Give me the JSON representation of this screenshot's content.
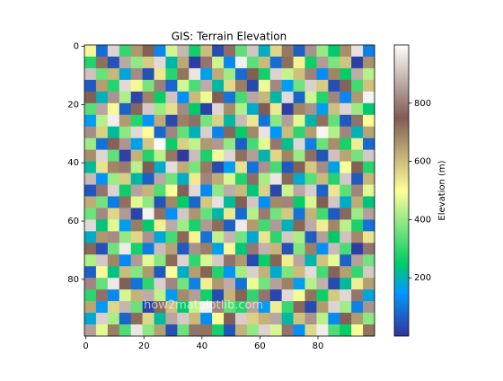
{
  "chart_data": {
    "type": "heatmap",
    "title": "GIS: Terrain Elevation",
    "colormap": "terrain",
    "colorbar_label": "Elevation (m)",
    "annotation": "how2matplotlib.com",
    "xlim": [
      -0.5,
      99.5
    ],
    "ylim": [
      99.5,
      -0.5
    ],
    "xticks": [
      0,
      20,
      40,
      60,
      80
    ],
    "yticks": [
      0,
      20,
      40,
      60,
      80
    ],
    "clim": [
      0,
      1000
    ],
    "colorbar_ticks": [
      200,
      400,
      600,
      800
    ],
    "z": [
      [
        512,
        87,
        934,
        301,
        658,
        742,
        123,
        455,
        889,
        267,
        601,
        38,
        776,
        342,
        910,
        189,
        563,
        705,
        64,
        831,
        398,
        247,
        672,
        954,
        115
      ],
      [
        283,
        719,
        46,
        867,
        392,
        578,
        941,
        206,
        634,
        15,
        788,
        453,
        129,
        976,
        341,
        602,
        85,
        724,
        519,
        263,
        847,
        371,
        590,
        19,
        668
      ],
      [
        905,
        352,
        611,
        178,
        823,
        47,
        536,
        288,
        712,
        959,
        164,
        627,
        403,
        82,
        745,
        268,
        931,
        441,
        596,
        807,
        132,
        685,
        254,
        873,
        427
      ],
      [
        61,
        648,
        287,
        942,
        513,
        369,
        804,
        73,
        456,
        325,
        871,
        208,
        559,
        697,
        31,
        482,
        817,
        159,
        364,
        928,
        578,
        43,
        761,
        316,
        594
      ],
      [
        744,
        195,
        836,
        420,
        26,
        691,
        259,
        907,
        138,
        604,
        483,
        752,
        97,
        318,
        865,
        611,
        207,
        944,
        73,
        452,
        286,
        813,
        125,
        657,
        982
      ],
      [
        337,
        862,
        509,
        71,
        765,
        918,
        402,
        551,
        823,
        246,
        19,
        936,
        675,
        423,
        186,
        749,
        534,
        18,
        689,
        831,
        162,
        597,
        936,
        402,
        241
      ],
      [
        159,
        428,
        973,
        654,
        287,
        143,
        628,
        35,
        694,
        781,
        362,
        571,
        208,
        894,
        537,
        92,
        385,
        852,
        471,
        205,
        719,
        348,
        57,
        783,
        506
      ],
      [
        826,
        571,
        214,
        389,
        942,
        506,
        76,
        813,
        347,
        198,
        925,
        119,
        764,
        255,
        683,
        957,
        146,
        603,
        291,
        647,
        984,
        426,
        812,
        197,
        639
      ],
      [
        402,
        93,
        758,
        839,
        163,
        587,
        994,
        261,
        572,
        438,
        657,
        843,
        391,
        62,
        319,
        474,
        792,
        226,
        938,
        113,
        352,
        671,
        273,
        531,
        78
      ],
      [
        671,
        937,
        345,
        22,
        616,
        281,
        432,
        708,
        12,
        899,
        274,
        485,
        937,
        719,
        852,
        205,
        563,
        689,
        401,
        778,
        49,
        904,
        638,
        364,
        916
      ],
      [
        215,
        543,
        687,
        798,
        431,
        752,
        187,
        946,
        625,
        367,
        704,
        36,
        158,
        543,
        96,
        831,
        317,
        54,
        756,
        584,
        823,
        169,
        493,
        742,
        287
      ],
      [
        893,
        142,
        403,
        576,
        209,
        64,
        865,
        359,
        187,
        532,
        813,
        627,
        461,
        281,
        775,
        413,
        958,
        731,
        182,
        337,
        607,
        285,
        916,
        56,
        613
      ],
      [
        52,
        786,
        931,
        263,
        857,
        614,
        329,
        493,
        758,
        941,
        127,
        392,
        873,
        605,
        238,
        569,
        28,
        448,
        864,
        925,
        71,
        538,
        342,
        811,
        469
      ],
      [
        627,
        364,
        108,
        719,
        472,
        393,
        48,
        682,
        254,
        76,
        586,
        952,
        217,
        743,
        914,
        136,
        679,
        812,
        257,
        463,
        746,
        911,
        186,
        628,
        235
      ],
      [
        358,
        817,
        562,
        846,
        25,
        981,
        716,
        137,
        913,
        662,
        349,
        208,
        534,
        81,
        427,
        798,
        362,
        583,
        95,
        618,
        314,
        57,
        769,
        403,
        853
      ],
      [
        941,
        236,
        473,
        157,
        698,
        247,
        524,
        871,
        406,
        273,
        846,
        723,
        65,
        968,
        651,
        314,
        846,
        197,
        734,
        871,
        528,
        682,
        433,
        276,
        94
      ],
      [
        186,
        659,
        824,
        392,
        563,
        835,
        173,
        317,
        731,
        518,
        92,
        437,
        886,
        362,
        177,
        542,
        293,
        915,
        418,
        62,
        853,
        249,
        907,
        681,
        539
      ],
      [
        734,
        42,
        359,
        968,
        274,
        109,
        896,
        643,
        58,
        832,
        695,
        164,
        512,
        237,
        793,
        881,
        614,
        46,
        376,
        694,
        137,
        896,
        324,
        15,
        786
      ],
      [
        423,
        915,
        687,
        126,
        845,
        471,
        382,
        728,
        934,
        296,
        461,
        918,
        783,
        657,
        34,
        258,
        737,
        528,
        861,
        205,
        592,
        477,
        69,
        854,
        362
      ],
      [
        66,
        508,
        231,
        603,
        379,
        658,
        55,
        496,
        187,
        647,
        738,
        283,
        146,
        412,
        927,
        619,
        183,
        374,
        602,
        947,
        318,
        762,
        645,
        297,
        918
      ],
      [
        815,
        347,
        964,
        745,
        93,
        294,
        927,
        812,
        363,
        114,
        526,
        657,
        873,
        94,
        481,
        363,
        854,
        693,
        157,
        428,
        879,
        36,
        214,
        528,
        647
      ],
      [
        294,
        782,
        127,
        458,
        618,
        873,
        436,
        158,
        676,
        852,
        268,
        37,
        615,
        738,
        296,
        786,
        27,
        941,
        485,
        713,
        265,
        583,
        938,
        789,
        173
      ],
      [
        637,
        153,
        563,
        886,
        354,
        25,
        768,
        597,
        243,
        439,
        976,
        813,
        342,
        286,
        856,
        153,
        529,
        306,
        768,
        37,
        652,
        934,
        407,
        116,
        835
      ],
      [
        178,
        926,
        415,
        72,
        727,
        562,
        214,
        863,
        918,
        605,
        132,
        496,
        754,
        923,
        571,
        617,
        864,
        212,
        594,
        836,
        431,
        128,
        743,
        652,
        389
      ],
      [
        853,
        472,
        698,
        326,
        961,
        389,
        645,
        42,
        357,
        786,
        714,
        269,
        48,
        617,
        394,
        932,
        463,
        786,
        137,
        561,
        973,
        327,
        256,
        492,
        716
      ]
    ]
  }
}
